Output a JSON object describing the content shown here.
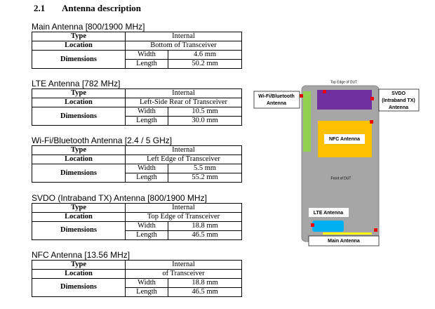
{
  "heading": {
    "number": "2.1",
    "title": "Antenna description"
  },
  "sections": [
    {
      "title": "Main Antenna [800/1900 MHz]",
      "rows": [
        [
          "Type",
          "Internal"
        ],
        [
          "Location",
          "Bottom of Transceiver"
        ],
        [
          "Dimensions",
          "Width",
          "4.6 mm"
        ],
        [
          "Length",
          "50.2 mm"
        ]
      ]
    },
    {
      "title": "LTE Antenna [782 MHz]",
      "rows": [
        [
          "Type",
          "Internal"
        ],
        [
          "Location",
          "Left-Side Rear of Transceiver"
        ],
        [
          "Dimensions",
          "Width",
          "10.5 mm"
        ],
        [
          "Length",
          "30.0 mm"
        ]
      ]
    },
    {
      "title": "Wi-Fi/Bluetooth Antenna [2.4 / 5 GHz]",
      "rows": [
        [
          "Type",
          "Internal"
        ],
        [
          "Location",
          "Left Edge of Transceiver"
        ],
        [
          "Dimensions",
          "Width",
          "5.5 mm"
        ],
        [
          "Length",
          "55.2 mm"
        ]
      ]
    },
    {
      "title": "SVDO (Intraband TX) Antenna [800/1900 MHz]",
      "rows": [
        [
          "Type",
          "Internal"
        ],
        [
          "Location",
          "Top Edge of Transceiver"
        ],
        [
          "Dimensions",
          "Width",
          "18.8 mm"
        ],
        [
          "Length",
          "46.5 mm"
        ]
      ]
    },
    {
      "title": "NFC Antenna [13.56 MHz]",
      "rows": [
        [
          "Type",
          "Internal"
        ],
        [
          "Location",
          "of Transceiver"
        ],
        [
          "Dimensions",
          "Width",
          "18.8 mm"
        ],
        [
          "Length",
          "46.5 mm"
        ]
      ]
    }
  ],
  "diagram": {
    "top_edge": "Top Edge of DUT",
    "wifi": [
      "Wi-Fi/Bluetooth",
      "Antenna"
    ],
    "svdo": [
      "SVDO",
      "(Intraband TX)",
      "Antenna"
    ],
    "nfc": "NFC Antenna",
    "front": "Front of DUT",
    "lte": "LTE Antenna",
    "main": "Main Antenna"
  }
}
